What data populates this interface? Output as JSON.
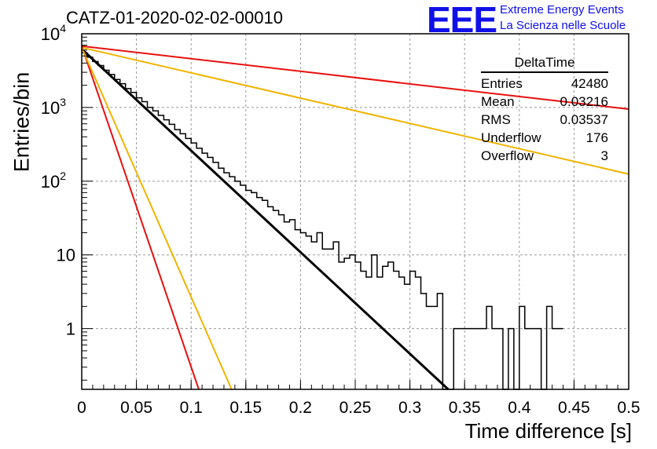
{
  "title": "CATZ-01-2020-02-02-00010",
  "logo": {
    "mark": "EEE",
    "line1": "Extreme Energy Events",
    "line2": "La Scienza nelle Scuole",
    "color": "#1010e8"
  },
  "stats": {
    "name": "DeltaTime",
    "rows": [
      {
        "label": "Entries",
        "value": "42480"
      },
      {
        "label": "Mean",
        "value": "0.03216"
      },
      {
        "label": "RMS",
        "value": "0.03537"
      },
      {
        "label": "Underflow",
        "value": "176"
      },
      {
        "label": "Overflow",
        "value": "3"
      }
    ]
  },
  "chart_data": {
    "type": "line",
    "xlabel": "Time difference [s]",
    "ylabel": "Entries/bin",
    "xlim": [
      0,
      0.5
    ],
    "ylim": [
      0.15,
      10000
    ],
    "yscale": "log",
    "grid": true,
    "x_ticks": [
      "0",
      "0.05",
      "0.1",
      "0.15",
      "0.2",
      "0.25",
      "0.3",
      "0.35",
      "0.4",
      "0.45",
      "0.5"
    ],
    "y_ticks": [
      {
        "value": 1,
        "label": "1"
      },
      {
        "value": 10,
        "label": "10"
      },
      {
        "value": 100,
        "label": "10^2"
      },
      {
        "value": 1000,
        "label": "10^3"
      },
      {
        "value": 10000,
        "label": "10^4"
      }
    ],
    "histogram": {
      "name": "DeltaTime",
      "bin_width": 0.005,
      "values": [
        5500,
        4800,
        4200,
        3700,
        3200,
        2800,
        2400,
        2100,
        1800,
        1600,
        1350,
        1200,
        1000,
        900,
        780,
        680,
        590,
        500,
        440,
        380,
        330,
        280,
        240,
        210,
        180,
        150,
        130,
        115,
        100,
        88,
        75,
        70,
        60,
        55,
        45,
        40,
        35,
        28,
        30,
        22,
        20,
        18,
        15,
        20,
        12,
        12,
        15,
        8,
        9,
        10,
        8,
        6,
        5,
        10,
        5,
        7,
        8,
        6,
        5,
        4,
        6,
        5,
        3,
        2,
        2,
        3,
        0,
        0,
        1,
        1,
        1,
        1,
        1,
        1,
        2,
        1,
        1,
        0,
        1,
        0,
        2,
        1,
        1,
        1,
        0,
        2,
        1,
        1
      ]
    },
    "fits": [
      {
        "color": "#000000",
        "x": [
          0,
          0.335
        ],
        "y": [
          6200,
          0.15
        ]
      },
      {
        "color": "#e81010",
        "x": [
          0,
          0.5
        ],
        "y": [
          6800,
          950
        ]
      },
      {
        "color": "#f0b400",
        "x": [
          0,
          0.5
        ],
        "y": [
          6500,
          125
        ]
      },
      {
        "color": "#e81010",
        "x": [
          0,
          0.107
        ],
        "y": [
          6800,
          0.15
        ]
      },
      {
        "color": "#f0b400",
        "x": [
          0,
          0.137
        ],
        "y": [
          6500,
          0.15
        ]
      }
    ]
  }
}
